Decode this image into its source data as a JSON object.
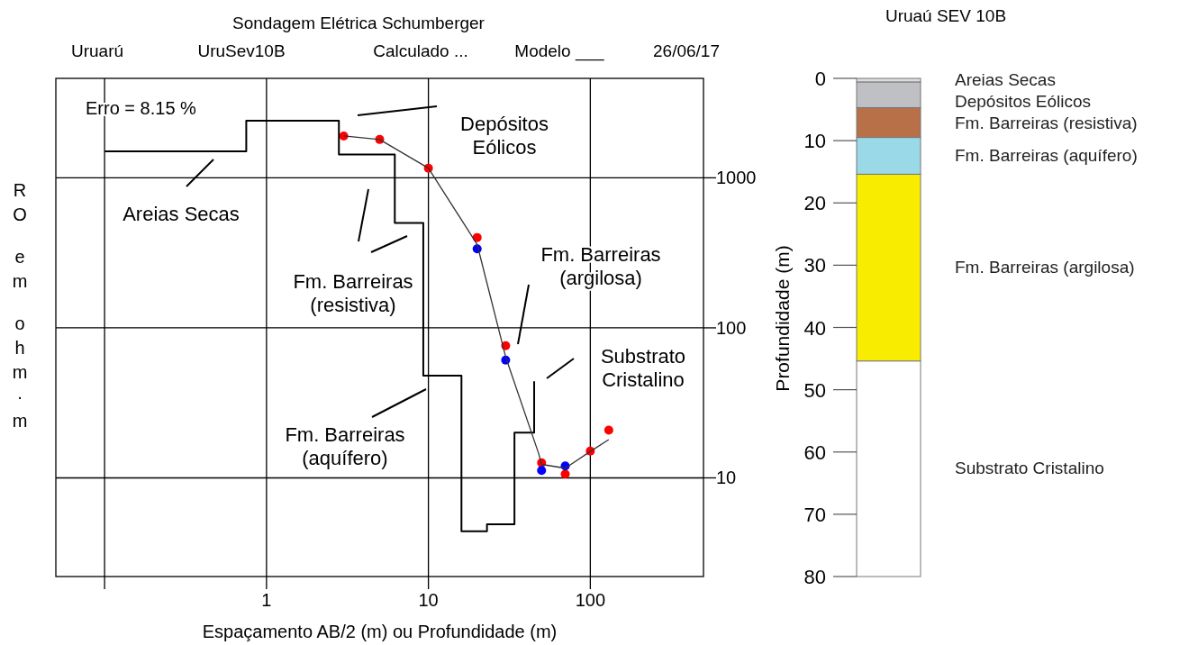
{
  "chart_data": [
    {
      "type": "line",
      "title": "Sondagem Elétrica Schumberger",
      "subtitle": "Uruarú   UruSev10B   Calculado ...   Modelo ___   26/06/17",
      "xlabel": "Espaçamento AB/2 (m) ou Profundidade (m)",
      "ylabel": "RO em ohm·m",
      "log": "xy",
      "grid": true,
      "xlim": [
        0.05,
        500
      ],
      "xticks": [
        {
          "value": 0.1,
          "label": null
        },
        1,
        10,
        100
      ],
      "ylim": [
        2.2,
        4600
      ],
      "yticks": [
        10,
        100,
        1000
      ],
      "series": [
        {
          "type": "step",
          "color": "#000000",
          "marker": "none",
          "x": [
            0.1,
            0.75,
            2.8,
            6.2,
            9.3,
            16,
            23,
            34,
            45
          ],
          "values": [
            1500,
            2400,
            1430,
            500,
            48,
            4.4,
            4.9,
            20,
            44
          ]
        },
        {
          "type": "line",
          "color": "#333333",
          "marker": "none",
          "x": [
            3,
            5,
            10,
            20,
            30,
            48,
            50,
            70,
            100,
            130
          ],
          "values": [
            1900,
            1800,
            1160,
            360,
            64,
            14.5,
            12.3,
            11.6,
            15,
            18
          ]
        },
        {
          "type": "scatter",
          "color": "#ff0000",
          "marker": "circle",
          "x": [
            3,
            5,
            10,
            20,
            30,
            50,
            70,
            100,
            130
          ],
          "values": [
            1900,
            1800,
            1160,
            400,
            76,
            12.6,
            10.6,
            15.1,
            20.8
          ]
        },
        {
          "type": "scatter",
          "color": "#0000ff",
          "marker": "circle",
          "x": [
            20,
            30,
            50,
            70
          ],
          "values": [
            336,
            61,
            11.2,
            12
          ]
        }
      ],
      "annotations": [
        "Erro =  8.15 %",
        "Areias Secas",
        "Depósitos\nEólicos",
        "Fm. Barreiras\n(resistiva)",
        "Fm. Barreiras\n(argilosa)",
        "Substrato\nCristalino",
        "Fm. Barreiras\n(aquífero)"
      ]
    },
    {
      "type": "bar",
      "stacked": true,
      "title": "Uruaú SEV 10B",
      "ylabel": "Profundidade (m)",
      "categories": [
        null
      ],
      "ylim": [
        80,
        0
      ],
      "yticks": [
        0,
        10,
        20,
        30,
        40,
        50,
        60,
        70,
        80
      ],
      "series": [
        {
          "name": "Areias Secas",
          "color": "#dcdcdc",
          "values": [
            0.6
          ]
        },
        {
          "name": "Depósitos Eólicos",
          "color": "#bfc0c4",
          "values": [
            4.1
          ]
        },
        {
          "name": "Fm. Barreiras (resistiva)",
          "color": "#b87049",
          "values": [
            4.8
          ]
        },
        {
          "name": "Fm. Barreiras (aquífero)",
          "color": "#99d9e8",
          "values": [
            5.9
          ]
        },
        {
          "name": "Fm. Barreiras (argilosa)",
          "color": "#f8ec00",
          "values": [
            30
          ]
        },
        {
          "name": "Substrato Cristalino",
          "color": "#ffffff",
          "values": [
            34.6
          ]
        }
      ]
    }
  ]
}
